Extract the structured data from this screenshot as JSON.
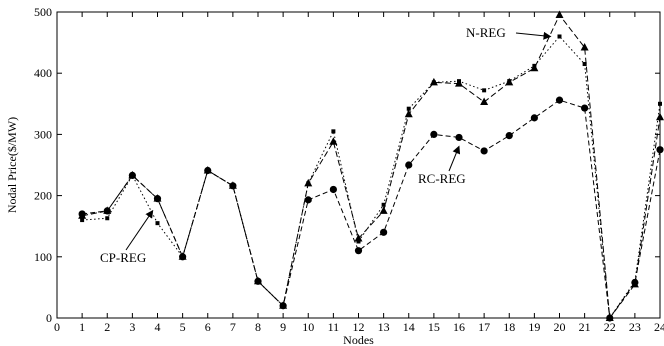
{
  "chart_data": {
    "type": "line",
    "xlabel": "Nodes",
    "ylabel": "Nodal Price($/MW)",
    "xlim": [
      0,
      24
    ],
    "ylim": [
      0,
      500
    ],
    "xticks": [
      0,
      1,
      2,
      3,
      4,
      5,
      6,
      7,
      8,
      9,
      10,
      11,
      12,
      13,
      14,
      15,
      16,
      17,
      18,
      19,
      20,
      21,
      22,
      23,
      24
    ],
    "yticks": [
      0,
      100,
      200,
      300,
      400,
      500
    ],
    "grid": false,
    "x": [
      1,
      2,
      3,
      4,
      5,
      6,
      7,
      8,
      9,
      10,
      11,
      12,
      13,
      14,
      15,
      16,
      17,
      18,
      19,
      20,
      21,
      22,
      23,
      24
    ],
    "series": [
      {
        "name": "N-REG",
        "values": [
          160,
          163,
          233,
          155,
          100,
          241,
          216,
          60,
          20,
          220,
          305,
          125,
          185,
          342,
          385,
          387,
          372,
          387,
          412,
          460,
          415,
          0,
          60,
          350
        ]
      },
      {
        "name": "CP-REG",
        "values": [
          167,
          175,
          233,
          195,
          100,
          241,
          216,
          60,
          20,
          220,
          288,
          130,
          175,
          333,
          385,
          383,
          353,
          385,
          408,
          495,
          442,
          0,
          55,
          328
        ]
      },
      {
        "name": "RC-REG",
        "values": [
          170,
          175,
          233,
          195,
          100,
          241,
          216,
          60,
          20,
          193,
          210,
          110,
          140,
          250,
          300,
          295,
          273,
          298,
          327,
          356,
          343,
          0,
          58,
          275
        ]
      }
    ],
    "annotations": [
      {
        "text": "N-REG",
        "target_series": "N-REG",
        "target_x": 20
      },
      {
        "text": "RC-REG",
        "target_series": "RC-REG",
        "target_x": 16
      },
      {
        "text": "CP-REG",
        "target_series": "CP-REG",
        "target_x": 4
      }
    ]
  }
}
